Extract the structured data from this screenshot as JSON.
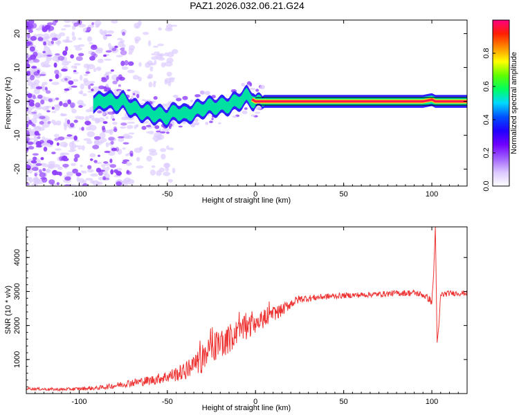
{
  "figure": {
    "title": "PAZ1.2026.032.06.21.G24"
  },
  "chart_data": [
    {
      "type": "heatmap",
      "title": "PAZ1.2026.032.06.21.G24",
      "xlabel": "Height of straight line (km)",
      "ylabel": "Frequency (Hz)",
      "xlim": [
        -130,
        120
      ],
      "ylim": [
        -25,
        24
      ],
      "x_ticks": [
        -100,
        -50,
        0,
        50,
        100
      ],
      "y_ticks": [
        -20,
        -10,
        0,
        10,
        20
      ],
      "trace_description": "Dominant frequency ridge vs height",
      "ridge": {
        "x": [
          -95,
          -90,
          -85,
          -80,
          -75,
          -70,
          -65,
          -60,
          -55,
          -50,
          -45,
          -40,
          -35,
          -30,
          -25,
          -20,
          -15,
          -10,
          -5,
          0,
          10,
          20,
          30,
          40,
          50,
          60,
          70,
          80,
          90,
          95,
          100,
          102,
          105,
          110,
          120
        ],
        "y": [
          0,
          -0.5,
          0.5,
          -0.5,
          0,
          -2,
          -3,
          -3.5,
          -4,
          -4.5,
          -3,
          -4,
          -3,
          -2,
          -1.5,
          -1.5,
          -1,
          0,
          1.5,
          0,
          0,
          0,
          0,
          0,
          0,
          0,
          0,
          0,
          0,
          0,
          0.5,
          0,
          0,
          0,
          0
        ]
      },
      "colorbar": {
        "label": "Normalized spectral amplitude",
        "range": [
          0.0,
          1.0
        ],
        "ticks": [
          "0.0",
          "0.2",
          "0.4",
          "0.6",
          "0.8"
        ],
        "tick_values": [
          0.0,
          0.2,
          0.4,
          0.6,
          0.8
        ],
        "colors": [
          "#ffffff",
          "#dcc8ff",
          "#a060ff",
          "#7000ff",
          "#2000ff",
          "#0050ff",
          "#00d8ff",
          "#00ff60",
          "#60ff00",
          "#ffff00",
          "#ff9000",
          "#ff2000",
          "#ff0080"
        ]
      },
      "colors": {
        "ridge_high": "#ff1a4a",
        "ridge_mid": "#00e0a0",
        "ridge_low": "#3020ff",
        "noise": "#9040ff",
        "noise_faint": "#ddccff"
      }
    },
    {
      "type": "line",
      "title": "",
      "xlabel": "Height of straight line (km)",
      "ylabel": "SNR (10 * v/v)",
      "xlim": [
        -130,
        120
      ],
      "ylim": [
        0,
        4900
      ],
      "x_ticks": [
        -100,
        -50,
        0,
        50,
        100
      ],
      "y_ticks": [
        1000,
        2000,
        3000,
        4000
      ],
      "series": [
        {
          "name": "SNR",
          "color": "#ee3333",
          "x": [
            -130,
            -120,
            -110,
            -100,
            -90,
            -80,
            -75,
            -70,
            -60,
            -50,
            -40,
            -35,
            -30,
            -25,
            -20,
            -15,
            -10,
            -5,
            0,
            5,
            10,
            15,
            20,
            25,
            30,
            40,
            50,
            60,
            70,
            80,
            90,
            95,
            98,
            100,
            101,
            102,
            103,
            104,
            105,
            110,
            120
          ],
          "y": [
            150,
            130,
            120,
            140,
            160,
            230,
            280,
            320,
            380,
            500,
            650,
            850,
            1000,
            1300,
            1500,
            1600,
            1800,
            1950,
            2050,
            2200,
            2350,
            2450,
            2650,
            2780,
            2800,
            2850,
            2880,
            2900,
            2920,
            2950,
            2960,
            2900,
            2800,
            2700,
            3500,
            4900,
            1500,
            2000,
            2900,
            2950,
            2950
          ],
          "noise_amplitude": [
            40,
            40,
            40,
            50,
            60,
            80,
            100,
            120,
            140,
            180,
            260,
            320,
            400,
            450,
            450,
            420,
            400,
            350,
            300,
            260,
            220,
            180,
            150,
            120,
            100,
            90,
            80,
            80,
            80,
            90,
            90,
            90,
            100,
            120,
            0,
            0,
            0,
            0,
            100,
            80,
            80
          ]
        }
      ]
    }
  ]
}
